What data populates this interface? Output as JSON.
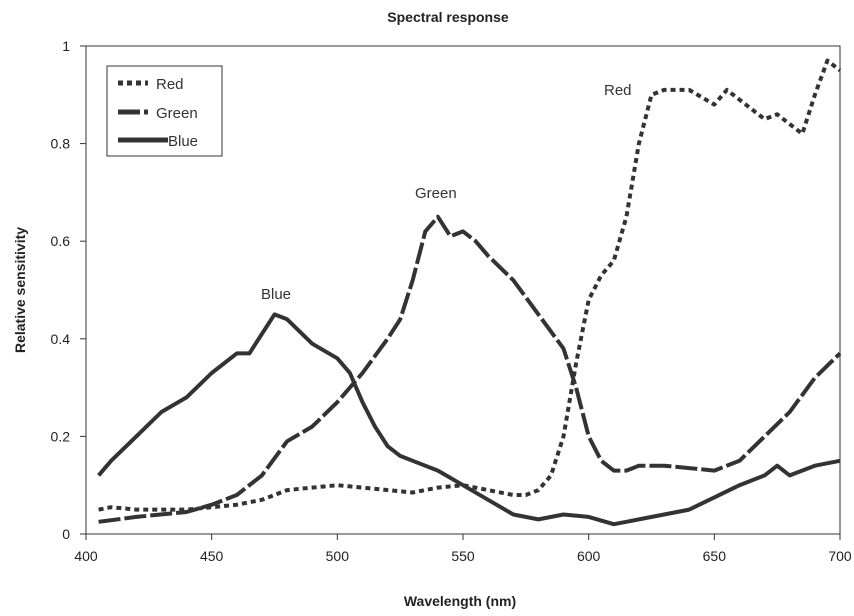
{
  "chart_data": {
    "type": "line",
    "title": "Spectral response",
    "xlabel": "Wavelength (nm)",
    "ylabel": "Relative sensitivity",
    "xlim": [
      400,
      700
    ],
    "ylim": [
      0,
      1
    ],
    "x_ticks": [
      "400",
      "450",
      "500",
      "550",
      "600",
      "650",
      "700"
    ],
    "y_ticks": [
      "0",
      "0.2",
      "0.4",
      "0.6",
      "0.8",
      "1"
    ],
    "grid": false,
    "legend_position": "top-left",
    "legend": [
      "Red",
      "Green",
      "Blue"
    ],
    "annotations": [
      "Red",
      "Green",
      "Blue"
    ],
    "series": [
      {
        "name": "Red",
        "line_style": "dotted",
        "color": "#333333",
        "x": [
          405,
          410,
          420,
          430,
          440,
          450,
          460,
          470,
          475,
          480,
          490,
          500,
          510,
          520,
          530,
          540,
          550,
          560,
          570,
          575,
          580,
          585,
          590,
          595,
          600,
          605,
          610,
          615,
          620,
          625,
          630,
          640,
          650,
          655,
          660,
          670,
          675,
          680,
          685,
          690,
          695,
          700
        ],
        "y": [
          0.05,
          0.055,
          0.05,
          0.05,
          0.05,
          0.055,
          0.06,
          0.07,
          0.08,
          0.09,
          0.095,
          0.1,
          0.095,
          0.09,
          0.085,
          0.095,
          0.1,
          0.09,
          0.08,
          0.08,
          0.09,
          0.12,
          0.2,
          0.35,
          0.48,
          0.53,
          0.56,
          0.65,
          0.8,
          0.9,
          0.91,
          0.91,
          0.88,
          0.91,
          0.89,
          0.85,
          0.86,
          0.84,
          0.82,
          0.9,
          0.97,
          0.95
        ]
      },
      {
        "name": "Green",
        "line_style": "dashed",
        "color": "#333333",
        "x": [
          405,
          420,
          440,
          450,
          460,
          470,
          480,
          490,
          500,
          510,
          520,
          525,
          530,
          535,
          540,
          545,
          550,
          555,
          560,
          570,
          580,
          590,
          595,
          600,
          605,
          610,
          615,
          620,
          630,
          640,
          650,
          660,
          670,
          680,
          690,
          700
        ],
        "y": [
          0.025,
          0.035,
          0.045,
          0.06,
          0.08,
          0.12,
          0.19,
          0.22,
          0.27,
          0.33,
          0.4,
          0.44,
          0.52,
          0.62,
          0.65,
          0.61,
          0.62,
          0.6,
          0.57,
          0.52,
          0.45,
          0.38,
          0.3,
          0.2,
          0.15,
          0.13,
          0.13,
          0.14,
          0.14,
          0.135,
          0.13,
          0.15,
          0.2,
          0.25,
          0.32,
          0.37
        ]
      },
      {
        "name": "Blue",
        "line_style": "solid",
        "color": "#333333",
        "x": [
          405,
          410,
          420,
          430,
          440,
          450,
          460,
          465,
          470,
          475,
          480,
          490,
          500,
          505,
          510,
          515,
          520,
          525,
          530,
          540,
          550,
          560,
          570,
          580,
          590,
          600,
          610,
          615,
          620,
          630,
          640,
          650,
          660,
          670,
          675,
          680,
          690,
          700
        ],
        "y": [
          0.12,
          0.15,
          0.2,
          0.25,
          0.28,
          0.33,
          0.37,
          0.37,
          0.41,
          0.45,
          0.44,
          0.39,
          0.36,
          0.33,
          0.27,
          0.22,
          0.18,
          0.16,
          0.15,
          0.13,
          0.1,
          0.07,
          0.04,
          0.03,
          0.04,
          0.035,
          0.02,
          0.025,
          0.03,
          0.04,
          0.05,
          0.075,
          0.1,
          0.12,
          0.14,
          0.12,
          0.14,
          0.15
        ]
      }
    ]
  }
}
